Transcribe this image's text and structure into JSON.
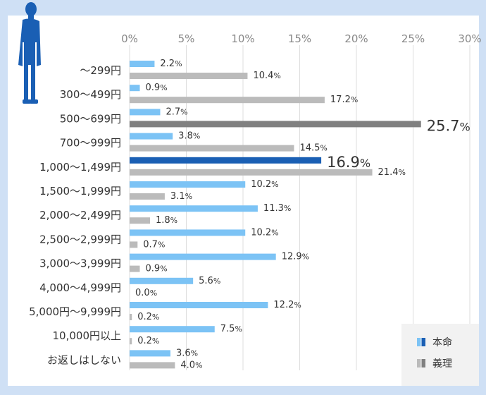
{
  "chart_data": {
    "type": "bar",
    "orientation": "horizontal",
    "categories": [
      "～299円",
      "300～499円",
      "500～699円",
      "700～999円",
      "1,000～1,499円",
      "1,500～1,999円",
      "2,000～2,499円",
      "2,500～2,999円",
      "3,000～3,999円",
      "4,000～4,999円",
      "5,000円～9,999円",
      "10,000円以上",
      "お返しはしない"
    ],
    "series": [
      {
        "name": "本命",
        "color": "#7cc3f5",
        "highlight_color": "#1a5fb4",
        "values": [
          2.2,
          0.9,
          2.7,
          3.8,
          16.9,
          10.2,
          11.3,
          10.2,
          12.9,
          5.6,
          12.2,
          7.5,
          3.6
        ]
      },
      {
        "name": "義理",
        "color": "#bbbbbb",
        "highlight_color": "#808080",
        "values": [
          10.4,
          17.2,
          25.7,
          14.5,
          21.4,
          3.1,
          1.8,
          0.7,
          0.9,
          0.0,
          0.2,
          0.2,
          4.0
        ]
      }
    ],
    "value_labels": [
      [
        "2.2",
        "0.9",
        "2.7",
        "3.8",
        "16.9",
        "10.2",
        "11.3",
        "10.2",
        "12.9",
        "5.6",
        "12.2",
        "7.5",
        "3.6"
      ],
      [
        "10.4",
        "17.2",
        "25.7",
        "14.5",
        "21.4",
        "3.1",
        "1.8",
        "0.7",
        "0.9",
        "0.0",
        "0.2",
        "0.2",
        "4.0"
      ]
    ],
    "value_unit": "%",
    "highlights": [
      {
        "series": 0,
        "index": 4
      },
      {
        "series": 1,
        "index": 2
      }
    ],
    "xticks": [
      "0%",
      "5%",
      "10%",
      "15%",
      "20%",
      "25%",
      "30%"
    ],
    "xlim": [
      0,
      30
    ],
    "grid": true,
    "legend_position": "bottom-right",
    "title": "",
    "xlabel": "",
    "ylabel": ""
  },
  "colors": {
    "frame": "#cfe0f5",
    "person": "#1a5fb4",
    "grid": "#dddddd",
    "highlight_text": "#1a5fb4"
  },
  "legend": {
    "items": [
      {
        "label": "本命",
        "color": "#1a5fb4"
      },
      {
        "label": "義理",
        "color": "#999999"
      }
    ]
  }
}
